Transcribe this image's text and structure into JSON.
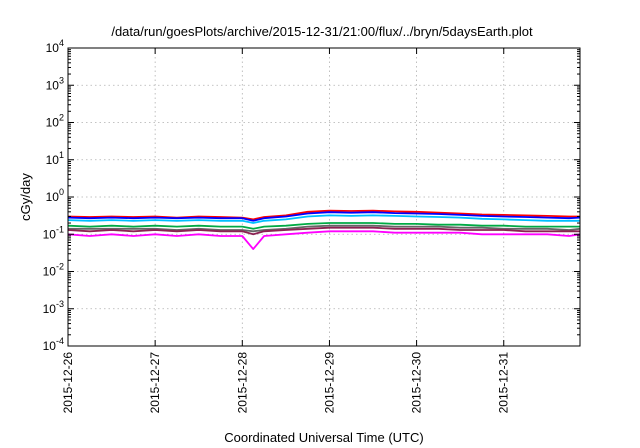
{
  "chart_data": {
    "type": "line",
    "title": "/data/run/goesPlots/archive/2015-12-31/21:00/flux/../bryn/5daysEarth.plot",
    "xlabel": "Coordinated Universal Time (UTC)",
    "ylabel": "cGy/day",
    "yscale": "log",
    "ylim": [
      0.0001,
      10000
    ],
    "xlim": [
      "2015-12-26",
      "2015-12-31 21:00"
    ],
    "grid": true,
    "y_ticks": [
      {
        "value": 0.0001,
        "base": "10",
        "exp": "-4"
      },
      {
        "value": 0.001,
        "base": "10",
        "exp": "-3"
      },
      {
        "value": 0.01,
        "base": "10",
        "exp": "-2"
      },
      {
        "value": 0.1,
        "base": "10",
        "exp": "-1"
      },
      {
        "value": 1,
        "base": "10",
        "exp": "0"
      },
      {
        "value": 10,
        "base": "10",
        "exp": "1"
      },
      {
        "value": 100,
        "base": "10",
        "exp": "2"
      },
      {
        "value": 1000,
        "base": "10",
        "exp": "3"
      },
      {
        "value": 10000,
        "base": "10",
        "exp": "4"
      }
    ],
    "x_ticks": [
      "2015-12-26",
      "2015-12-27",
      "2015-12-28",
      "2015-12-29",
      "2015-12-30",
      "2015-12-31"
    ],
    "x": [
      "2015-12-26 00:00",
      "2015-12-26 06:00",
      "2015-12-26 12:00",
      "2015-12-26 18:00",
      "2015-12-27 00:00",
      "2015-12-27 06:00",
      "2015-12-27 12:00",
      "2015-12-27 18:00",
      "2015-12-28 00:00",
      "2015-12-28 03:00",
      "2015-12-28 06:00",
      "2015-12-28 12:00",
      "2015-12-28 18:00",
      "2015-12-29 00:00",
      "2015-12-29 06:00",
      "2015-12-29 12:00",
      "2015-12-29 18:00",
      "2015-12-30 00:00",
      "2015-12-30 06:00",
      "2015-12-30 12:00",
      "2015-12-30 18:00",
      "2015-12-31 00:00",
      "2015-12-31 06:00",
      "2015-12-31 12:00",
      "2015-12-31 18:00",
      "2015-12-31 21:00"
    ],
    "series": [
      {
        "color": "#ff0000",
        "values": [
          0.3,
          0.29,
          0.3,
          0.29,
          0.3,
          0.28,
          0.3,
          0.29,
          0.28,
          0.25,
          0.29,
          0.32,
          0.4,
          0.43,
          0.42,
          0.43,
          0.41,
          0.4,
          0.38,
          0.36,
          0.34,
          0.33,
          0.32,
          0.31,
          0.3,
          0.3
        ]
      },
      {
        "color": "#0000ff",
        "values": [
          0.28,
          0.27,
          0.28,
          0.27,
          0.28,
          0.27,
          0.28,
          0.27,
          0.27,
          0.23,
          0.27,
          0.3,
          0.36,
          0.39,
          0.38,
          0.39,
          0.37,
          0.36,
          0.35,
          0.33,
          0.31,
          0.3,
          0.29,
          0.28,
          0.27,
          0.28
        ]
      },
      {
        "color": "#00bfff",
        "values": [
          0.24,
          0.23,
          0.24,
          0.23,
          0.24,
          0.23,
          0.24,
          0.23,
          0.23,
          0.2,
          0.23,
          0.25,
          0.3,
          0.32,
          0.31,
          0.32,
          0.31,
          0.3,
          0.29,
          0.28,
          0.26,
          0.25,
          0.24,
          0.23,
          0.23,
          0.23
        ]
      },
      {
        "color": "#00aa44",
        "values": [
          0.17,
          0.16,
          0.17,
          0.16,
          0.17,
          0.16,
          0.17,
          0.16,
          0.16,
          0.14,
          0.16,
          0.17,
          0.19,
          0.2,
          0.2,
          0.2,
          0.19,
          0.19,
          0.18,
          0.18,
          0.17,
          0.17,
          0.16,
          0.16,
          0.16,
          0.16
        ]
      },
      {
        "color": "#666666",
        "values": [
          0.14,
          0.14,
          0.14,
          0.14,
          0.14,
          0.13,
          0.14,
          0.13,
          0.13,
          0.12,
          0.13,
          0.14,
          0.16,
          0.17,
          0.17,
          0.17,
          0.16,
          0.16,
          0.16,
          0.15,
          0.15,
          0.14,
          0.14,
          0.14,
          0.13,
          0.14
        ]
      },
      {
        "color": "#8b2252",
        "values": [
          0.13,
          0.12,
          0.13,
          0.12,
          0.13,
          0.12,
          0.13,
          0.12,
          0.12,
          0.1,
          0.12,
          0.13,
          0.14,
          0.15,
          0.15,
          0.15,
          0.14,
          0.14,
          0.14,
          0.13,
          0.13,
          0.13,
          0.12,
          0.12,
          0.12,
          0.12
        ]
      },
      {
        "color": "#ff00ff",
        "values": [
          0.1,
          0.09,
          0.1,
          0.09,
          0.1,
          0.09,
          0.1,
          0.09,
          0.09,
          0.04,
          0.09,
          0.1,
          0.11,
          0.12,
          0.12,
          0.12,
          0.11,
          0.11,
          0.11,
          0.11,
          0.1,
          0.1,
          0.1,
          0.1,
          0.09,
          0.1
        ]
      }
    ]
  }
}
